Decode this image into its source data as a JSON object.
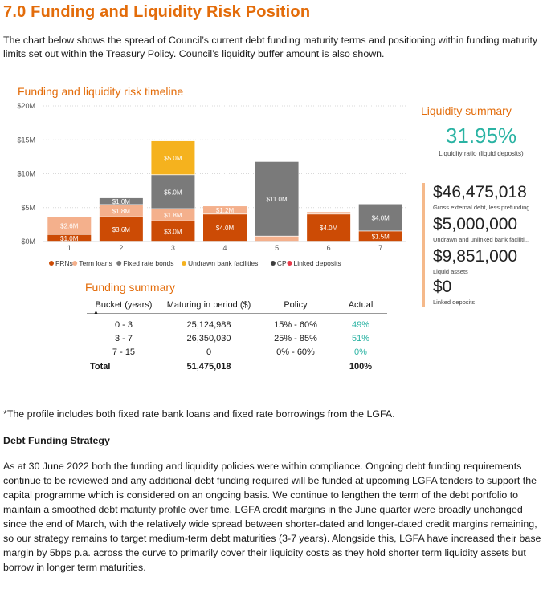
{
  "page": {
    "heading": "7.0 Funding and Liquidity Risk Position",
    "intro": "The chart below shows the spread of Council’s current debt funding maturity terms and positioning within funding maturity limits set out within the Treasury Policy. Council’s liquidity buffer amount is also shown."
  },
  "chart_data": {
    "type": "bar",
    "title": "Funding and liquidity risk timeline",
    "stacked": true,
    "categories": [
      "1",
      "2",
      "3",
      "4",
      "5",
      "6",
      "7"
    ],
    "yticks": [
      "$20M",
      "$15M",
      "$10M",
      "$5M",
      "$0M"
    ],
    "ylim": [
      0,
      20
    ],
    "unit": "$M",
    "grid": true,
    "legend_position": "bottom",
    "series": [
      {
        "name": "FRNs",
        "color": "#cc4b05",
        "values": [
          1.0,
          3.6,
          3.0,
          4.0,
          0,
          4.0,
          1.5
        ],
        "labels": [
          "$1.0M",
          "$3.6M",
          "$3.0M",
          "$4.0M",
          "",
          "$4.0M",
          "$1.5M"
        ]
      },
      {
        "name": "Term loans",
        "color": "#f4b08c",
        "values": [
          2.6,
          1.8,
          1.8,
          1.2,
          0.75,
          0.35,
          0
        ],
        "labels": [
          "$2.6M",
          "$1.8M",
          "$1.8M",
          "$1.2M",
          "",
          "",
          ""
        ]
      },
      {
        "name": "Fixed rate bonds",
        "color": "#7a7a7a",
        "values": [
          0,
          1.0,
          5.0,
          0,
          11.0,
          0,
          4.0
        ],
        "labels": [
          "",
          "$1.0M",
          "$5.0M",
          "",
          "$11.0M",
          "",
          "$4.0M"
        ]
      },
      {
        "name": "Undrawn bank facilities",
        "color": "#f5b21e",
        "values": [
          0,
          0,
          5.0,
          0,
          0,
          0,
          0
        ],
        "labels": [
          "",
          "",
          "$5.0M",
          "",
          "",
          "",
          ""
        ]
      },
      {
        "name": "CP",
        "color": "#3f3f3f",
        "values": [
          0,
          0,
          0,
          0,
          0,
          0,
          0
        ],
        "labels": [
          "",
          "",
          "",
          "",
          "",
          "",
          ""
        ]
      },
      {
        "name": "Linked deposits",
        "color": "#e8394a",
        "values": [
          0,
          0,
          0,
          0,
          0,
          0,
          0
        ],
        "labels": [
          "",
          "",
          "",
          "",
          "",
          "",
          ""
        ]
      }
    ]
  },
  "liquidity": {
    "title": "Liquidity summary",
    "ratio": "31.95%",
    "ratio_label": "Liquidity ratio (liquid deposits)",
    "items": [
      {
        "value": "$46,475,018",
        "label": "Gross external debt, less prefunding"
      },
      {
        "value": "$5,000,000",
        "label": "Undrawn and unlinked bank faciliti..."
      },
      {
        "value": "$9,851,000",
        "label": "Liquid assets"
      },
      {
        "value": "$0",
        "label": "Linked deposits"
      }
    ]
  },
  "funding_summary": {
    "title": "Funding summary",
    "headers": [
      "Bucket (years)",
      "Maturing in period ($)",
      "Policy",
      "Actual"
    ],
    "rows": [
      [
        "0 - 3",
        "25,124,988",
        "15% - 60%",
        "49%"
      ],
      [
        "3 - 7",
        "26,350,030",
        "25% - 85%",
        "51%"
      ],
      [
        "7 - 15",
        "0",
        "0% - 60%",
        "0%"
      ]
    ],
    "total": [
      "Total",
      "51,475,018",
      "",
      "100%"
    ]
  },
  "footnote": "*The profile includes both fixed rate bank loans and fixed rate borrowings from the LGFA.",
  "strategy": {
    "heading": "Debt Funding Strategy",
    "body": "As at 30 June 2022 both the funding and liquidity policies were within compliance. Ongoing debt funding requirements continue to be reviewed and any additional debt funding required will be funded at upcoming LGFA tenders to support the capital programme which is considered on an ongoing basis. We continue to lengthen the term of the debt portfolio to maintain a smoothed debt maturity profile over time. LGFA credit margins in the June quarter were broadly unchanged since the end of March, with the relatively wide spread between shorter-dated and longer-dated credit margins remaining, so our strategy remains to target medium-term debt maturities (3-7 years). Alongside this, LGFA have increased their base margin by 5bps p.a. across the curve to primarily cover their liquidity costs as they hold shorter term liquidity assets but borrow in longer term maturities."
  }
}
